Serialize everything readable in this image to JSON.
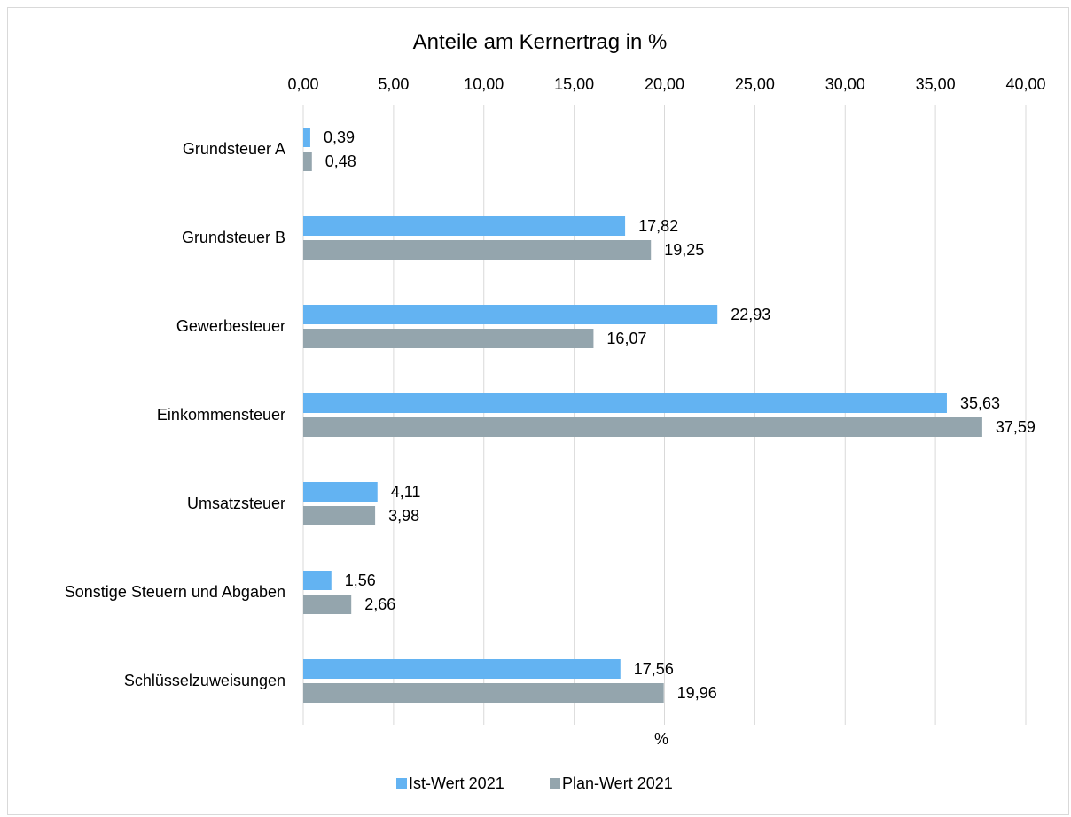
{
  "chart_data": {
    "type": "bar",
    "orientation": "horizontal",
    "title": "Anteile am Kernertrag in %",
    "xlabel": "%",
    "ylabel": "",
    "xlim": [
      0,
      40
    ],
    "x_tick_labels": [
      "0,00",
      "5,00",
      "10,00",
      "15,00",
      "20,00",
      "25,00",
      "30,00",
      "35,00",
      "40,00"
    ],
    "x_ticks": [
      0,
      5,
      10,
      15,
      20,
      25,
      30,
      35,
      40
    ],
    "x_axis_position": "top",
    "grid": "vertical",
    "legend_position": "bottom",
    "categories": [
      "Grundsteuer A",
      "Grundsteuer B",
      "Gewerbesteuer",
      "Einkommensteuer",
      "Umsatzsteuer",
      "Sonstige Steuern und Abgaben",
      "Schlüsselzuweisungen"
    ],
    "series": [
      {
        "name": "Ist-Wert 2021",
        "color": "#63b3f2",
        "values": [
          0.39,
          17.82,
          22.93,
          35.63,
          4.11,
          1.56,
          17.56
        ],
        "labels": [
          "0,39",
          "17,82",
          "22,93",
          "35,63",
          "4,11",
          "1,56",
          "17,56"
        ]
      },
      {
        "name": "Plan-Wert 2021",
        "color": "#94a5ad",
        "values": [
          0.48,
          19.25,
          16.07,
          37.59,
          3.98,
          2.66,
          19.96
        ],
        "labels": [
          "0,48",
          "19,25",
          "16,07",
          "37,59",
          "3,98",
          "2,66",
          "19,96"
        ]
      }
    ]
  }
}
